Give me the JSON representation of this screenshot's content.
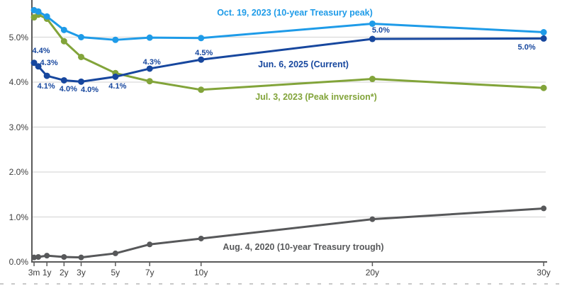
{
  "chart_data": {
    "type": "line",
    "description": "Treasury yield curves by maturity on four dates",
    "xlabel": "",
    "ylabel": "",
    "x_tick_labels": [
      "3m",
      "1y",
      "2y",
      "3y",
      "5y",
      "7y",
      "10y",
      "20y",
      "30y"
    ],
    "y_tick_labels": [
      "0.0%",
      "1.0%",
      "2.0%",
      "3.0%",
      "4.0%",
      "5.0%"
    ],
    "y_tick_values": [
      0,
      1,
      2,
      3,
      4,
      5
    ],
    "ylim": [
      0,
      5.8
    ],
    "grid": "horizontal",
    "maturities_years": [
      0.25,
      0.5,
      1,
      2,
      3,
      5,
      7,
      10,
      20,
      30
    ],
    "series": [
      {
        "name": "Oct. 19, 2023 (10-year Treasury peak)",
        "color": "#1E9BE8",
        "values": [
          5.6,
          5.57,
          5.46,
          5.16,
          5.0,
          4.94,
          4.99,
          4.98,
          5.3,
          5.11
        ]
      },
      {
        "name": "Jun. 6, 2025 (Current)",
        "color": "#17479E",
        "values": [
          4.43,
          4.35,
          4.14,
          4.04,
          4.01,
          4.12,
          4.3,
          4.5,
          4.96,
          4.97
        ],
        "point_labels": [
          "4.4%",
          "4.3%",
          "4.1%",
          "4.0%",
          "4.0%",
          "4.1%",
          "4.3%",
          "4.5%",
          "5.0%",
          "5.0%"
        ]
      },
      {
        "name": "Jul. 3, 2023 (Peak inversion*)",
        "color": "#82A43A",
        "values": [
          5.44,
          5.5,
          5.41,
          4.91,
          4.56,
          4.2,
          4.02,
          3.83,
          4.07,
          3.87
        ]
      },
      {
        "name": "Aug. 4, 2020 (10-year Treasury trough)",
        "color": "#57585A",
        "values": [
          0.1,
          0.11,
          0.14,
          0.11,
          0.1,
          0.19,
          0.39,
          0.52,
          0.95,
          1.19
        ]
      }
    ],
    "colors": {
      "gridline": "#D9D9D9",
      "axis_line": "#5A5A5A",
      "axis_text": "#3D3D3D",
      "bottom_dash": "#C9C9C9"
    }
  }
}
